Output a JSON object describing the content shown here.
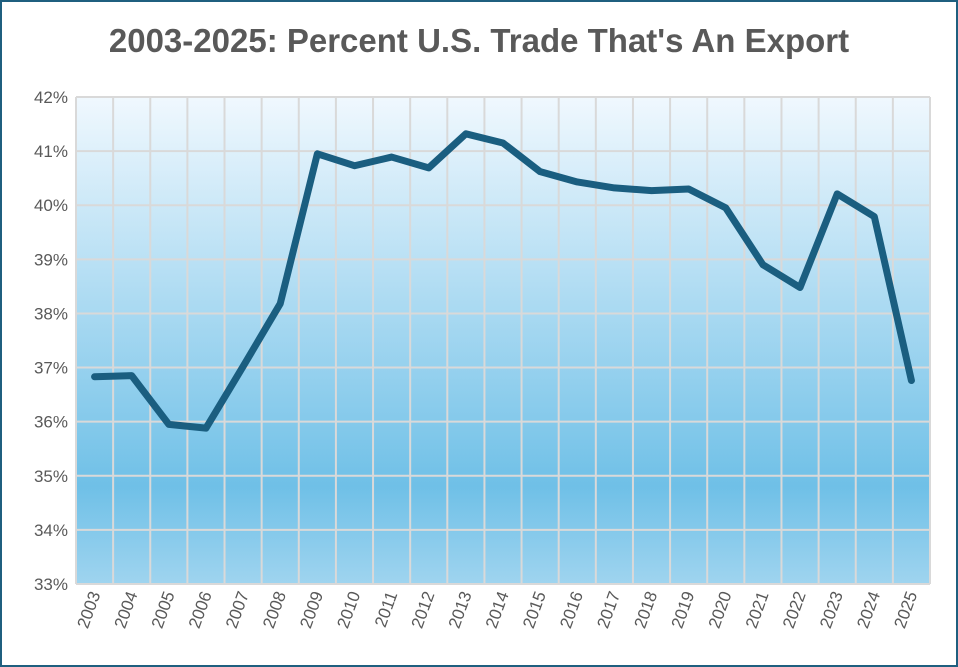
{
  "chart_data": {
    "type": "line",
    "title": "2003-2025: Percent U.S. Trade That's An Export",
    "xlabel": "",
    "ylabel": "",
    "categories": [
      "2003",
      "2004",
      "2005",
      "2006",
      "2007",
      "2008",
      "2009",
      "2010",
      "2011",
      "2012",
      "2013",
      "2014",
      "2015",
      "2016",
      "2017",
      "2018",
      "2019",
      "2020",
      "2021",
      "2022",
      "2023",
      "2024",
      "2025"
    ],
    "series": [
      {
        "values": [
          36.83,
          36.85,
          35.95,
          35.88,
          37.02,
          38.18,
          40.95,
          40.73,
          40.89,
          40.69,
          41.32,
          41.15,
          40.62,
          40.43,
          40.32,
          40.27,
          40.3,
          39.95,
          38.9,
          38.48,
          40.21,
          39.79,
          36.76
        ]
      }
    ],
    "ylim": [
      33,
      42
    ],
    "yticks": [
      33,
      34,
      35,
      36,
      37,
      38,
      39,
      40,
      41,
      42
    ],
    "ytick_format": "%",
    "grid": true,
    "legend": "none",
    "colors": {
      "line": "#1a5e80",
      "grid": "#d9d9d9",
      "background_top": "#f0f8fe",
      "background_mid": "#6fc0e7",
      "frame": "#1f5f7f"
    }
  }
}
